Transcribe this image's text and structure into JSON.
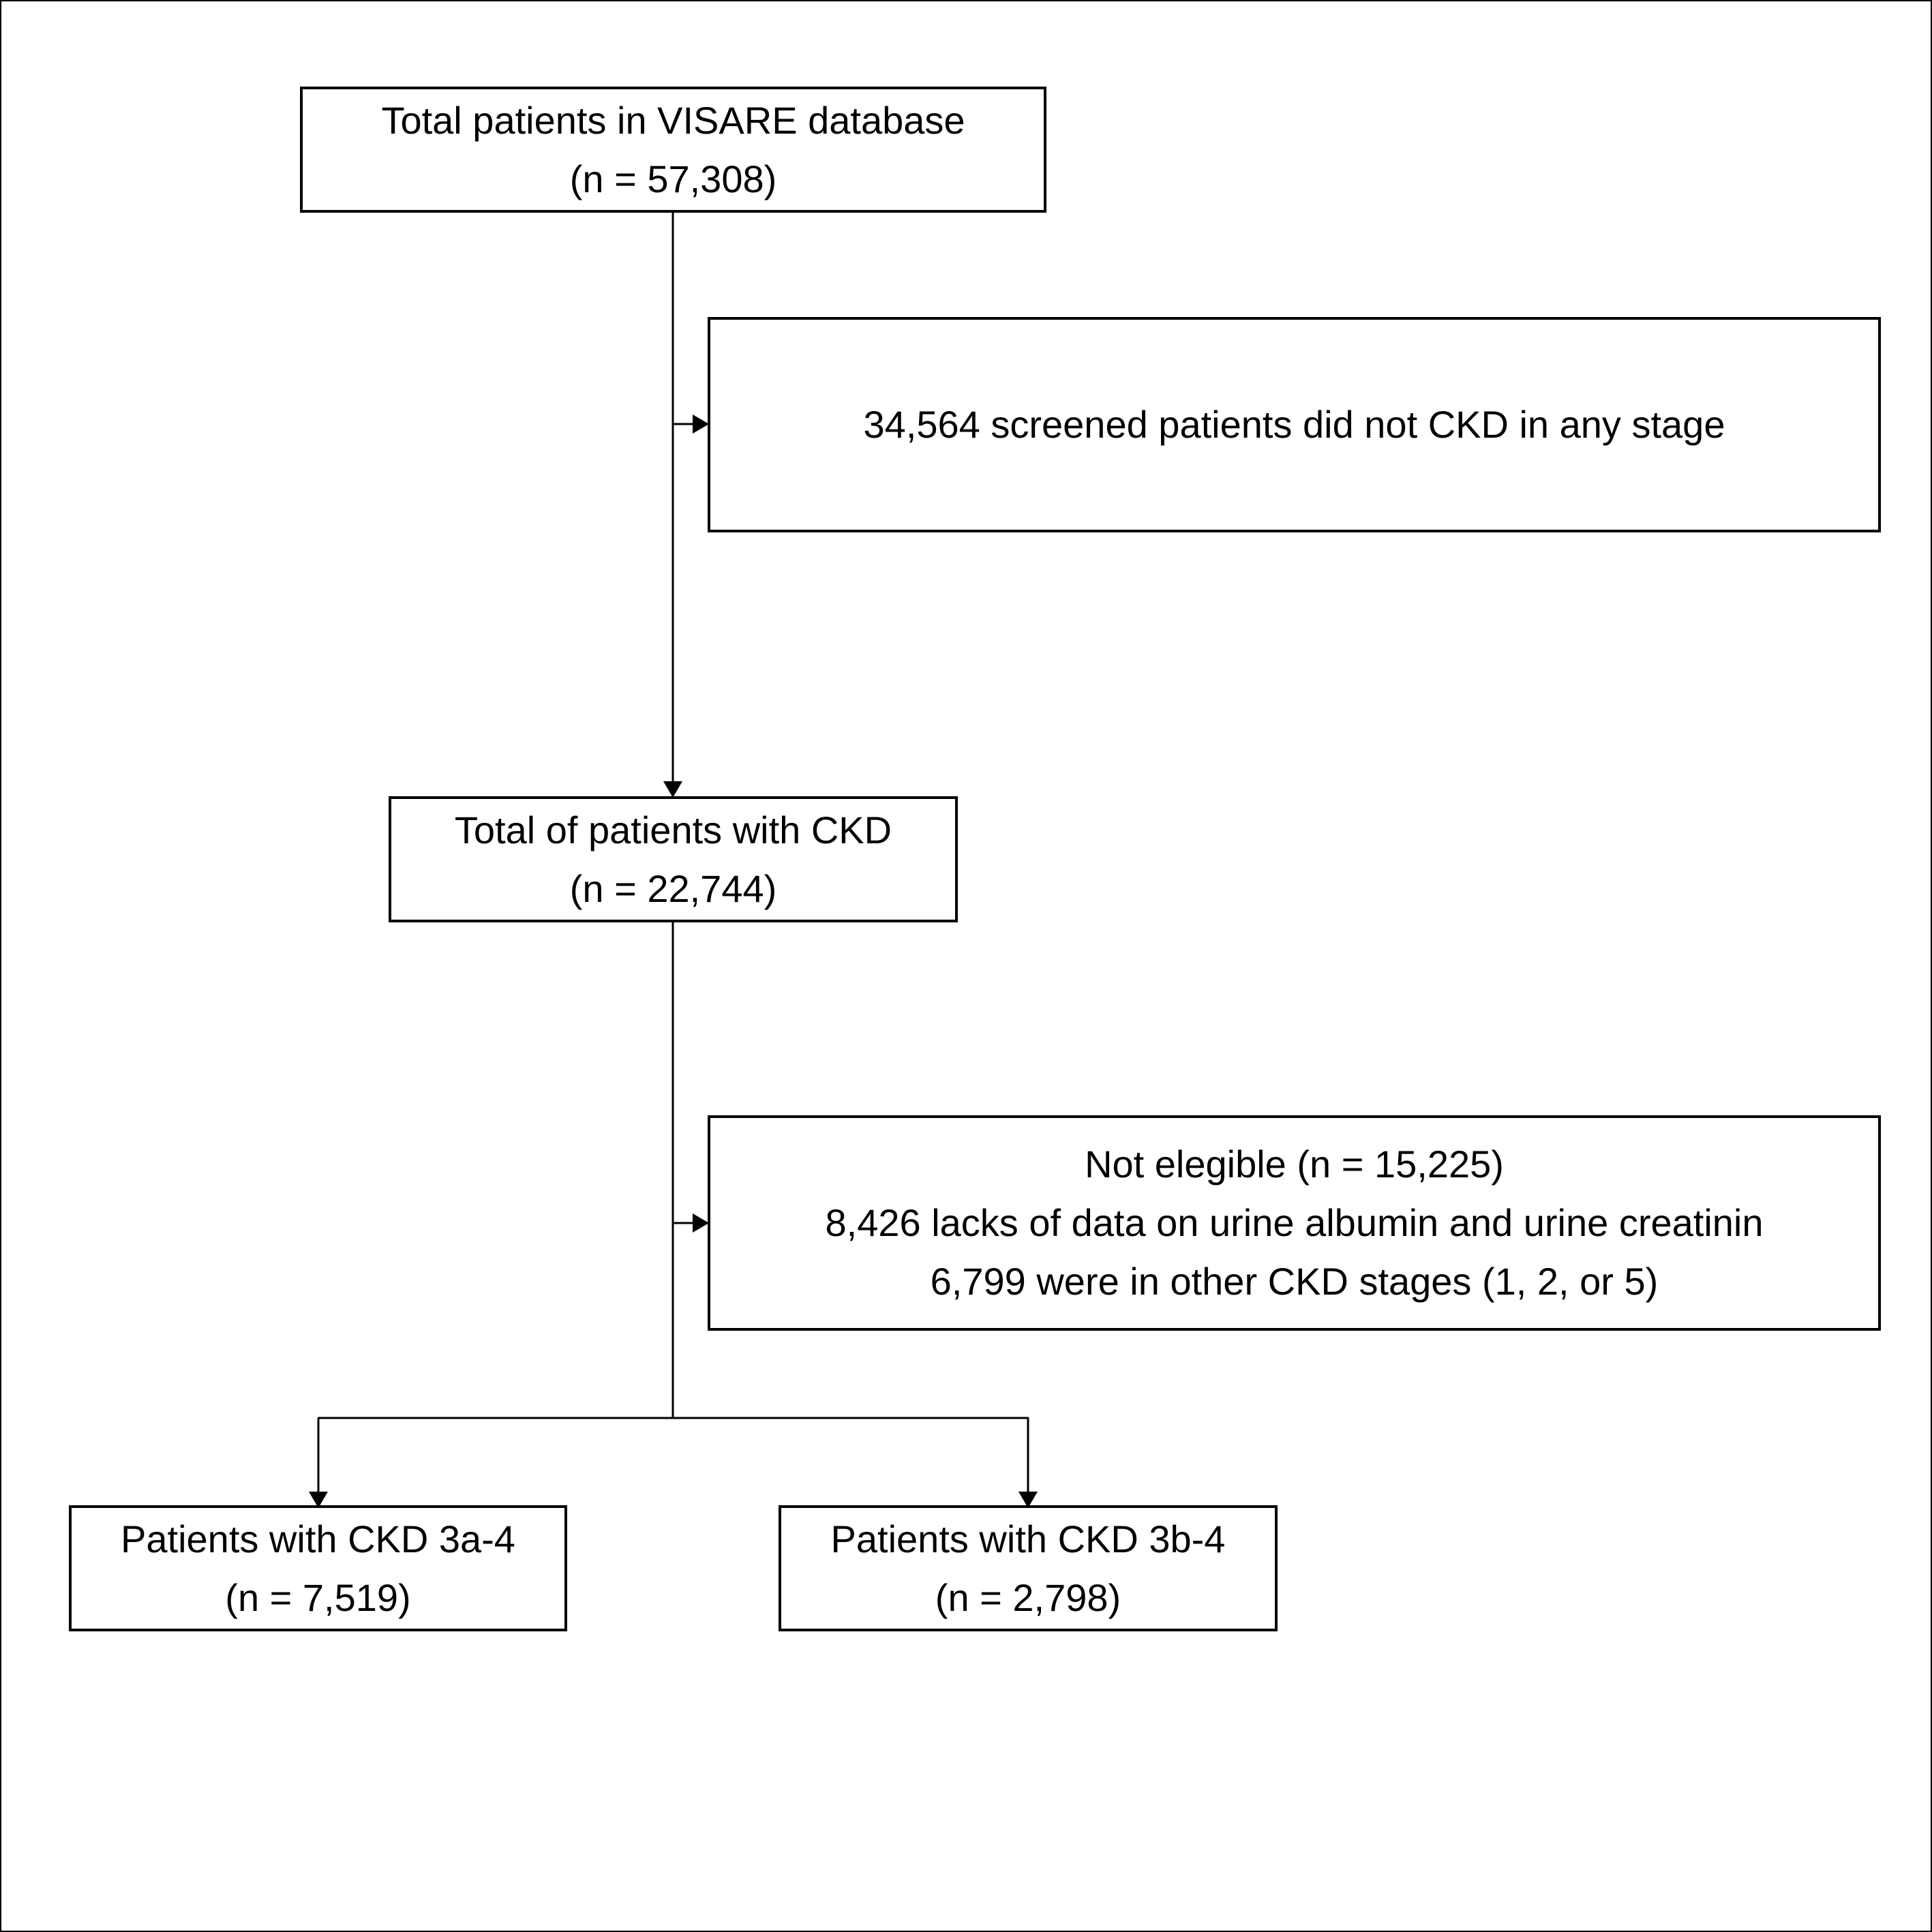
{
  "flowchart": {
    "total": {
      "line1": "Total patients in VISARE database",
      "line2": "(n = 57,308)"
    },
    "exclusion1": {
      "line1": "34,564 screened patients did not CKD in any stage"
    },
    "ckd": {
      "line1": "Total of patients with CKD",
      "line2": "(n = 22,744)"
    },
    "exclusion2": {
      "line1": "Not elegible (n = 15,225)",
      "line2": "8,426 lacks of data on urine albumin and urine creatinin",
      "line3": "6,799 were in other CKD stages (1, 2, or 5)"
    },
    "ckd_3a4": {
      "line1": "Patients with CKD 3a-4",
      "line2": "(n = 7,519)"
    },
    "ckd_3b4": {
      "line1": "Patients with CKD 3b-4",
      "line2": "(n = 2,798)"
    }
  }
}
